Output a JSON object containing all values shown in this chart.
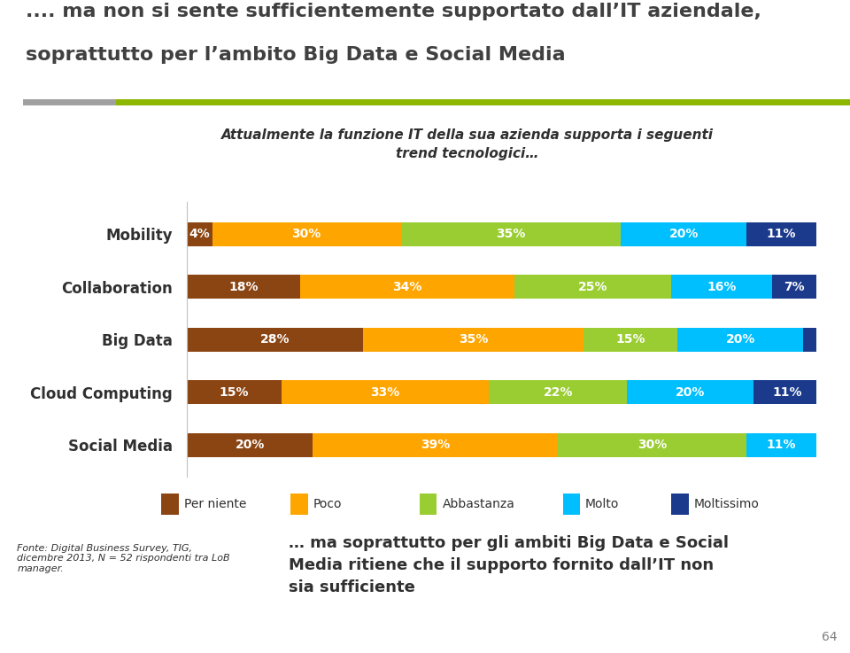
{
  "title_line1": ".... ma non si sente sufficientemente supportato dall’IT aziendale,",
  "title_line2": "soprattutto per l’ambito Big Data e Social Media",
  "subtitle": "Attualmente la funzione IT della sua azienda supporta i seguenti\ntrend tecnologici…",
  "categories": [
    "Mobility",
    "Collaboration",
    "Big Data",
    "Cloud Computing",
    "Social Media"
  ],
  "segments": [
    "Per niente",
    "Poco",
    "Abbastanza",
    "Molto",
    "Moltissimo"
  ],
  "colors": [
    "#8B4513",
    "#FFA500",
    "#9ACD32",
    "#00BFFF",
    "#1B3A8C"
  ],
  "data": [
    [
      4,
      30,
      35,
      20,
      11
    ],
    [
      18,
      34,
      25,
      16,
      7
    ],
    [
      28,
      35,
      15,
      20,
      2
    ],
    [
      15,
      33,
      22,
      20,
      11
    ],
    [
      20,
      39,
      30,
      11,
      0
    ]
  ],
  "footer_left": "Fonte: Digital Business Survey, TIG,\ndicembre 2013, N = 52 rispondenti tra LoB\nmanager.",
  "footer_right": "… ma soprattutto per gli ambiti Big Data e Social\nMedia ritiene che il supporto fornito dall’IT non\nsia sufficiente",
  "page_number": "64",
  "bar_height": 0.45,
  "background_color": "#FFFFFF",
  "title_color": "#404040",
  "accent_color_gray": "#A0A0A0",
  "accent_color_green": "#8DB600"
}
